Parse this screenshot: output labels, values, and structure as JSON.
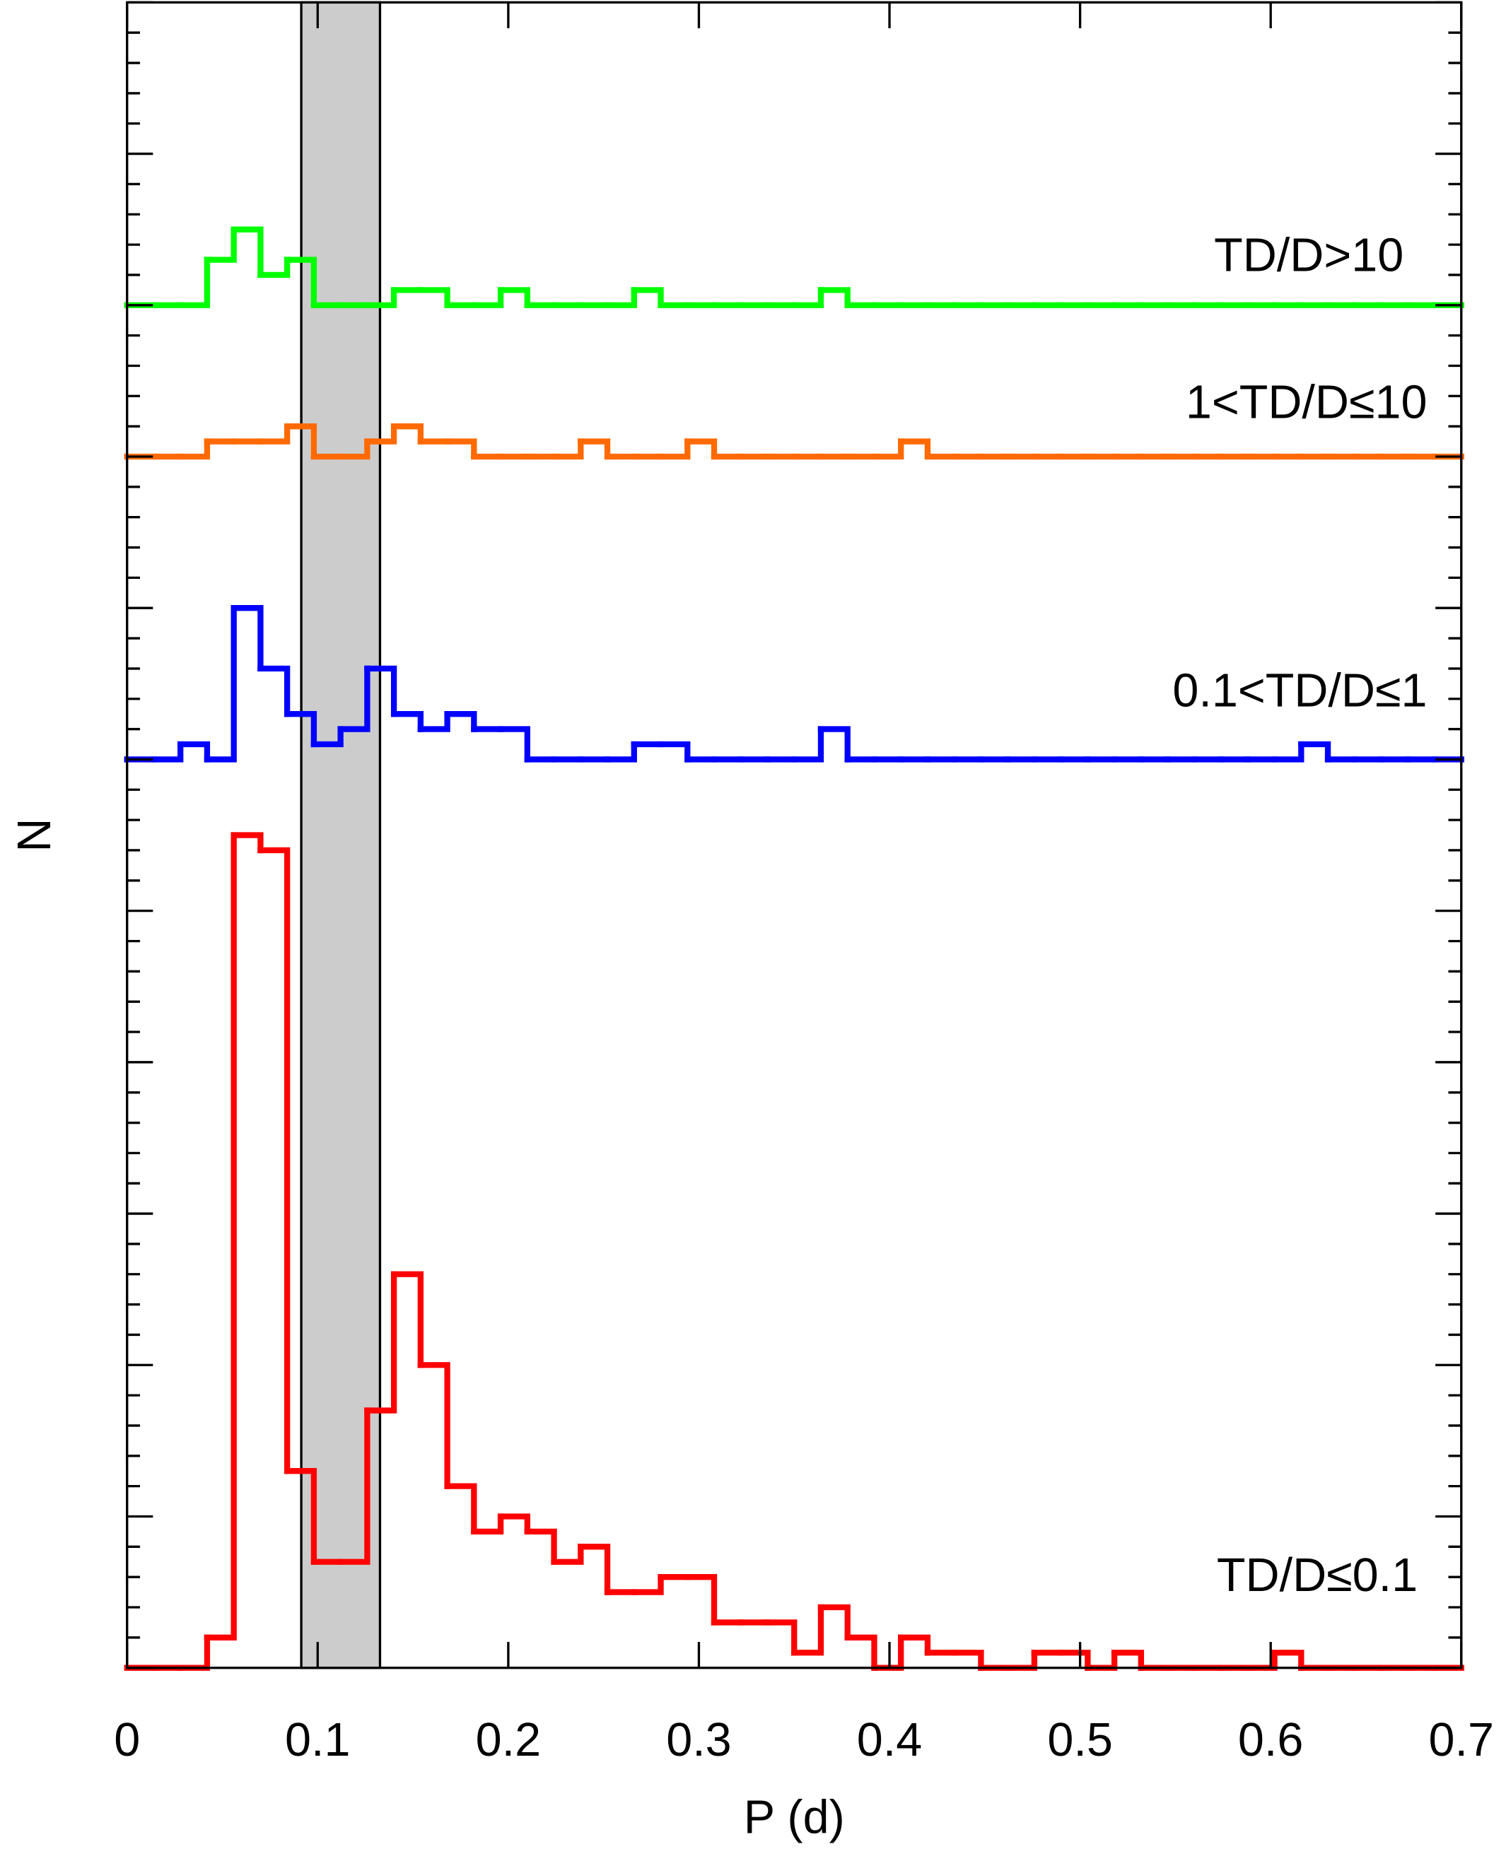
{
  "chart_data": {
    "type": "histogram",
    "xlabel": "P (d)",
    "ylabel": "N",
    "bins": [
      0,
      0.014,
      0.028,
      0.042,
      0.056,
      0.07,
      0.084,
      0.098,
      0.112,
      0.126,
      0.14,
      0.154,
      0.168,
      0.182,
      0.196,
      0.21,
      0.224,
      0.238,
      0.252,
      0.266,
      0.28,
      0.294,
      0.308,
      0.322,
      0.336,
      0.35,
      0.364,
      0.378,
      0.392,
      0.406,
      0.42,
      0.434,
      0.448,
      0.462,
      0.476,
      0.49,
      0.504,
      0.518,
      0.532,
      0.546,
      0.56,
      0.574,
      0.588,
      0.602,
      0.616,
      0.63,
      0.644,
      0.658,
      0.672,
      0.686,
      0.7
    ],
    "xlim": [
      0,
      0.7
    ],
    "xticks": [
      0,
      0.1,
      0.2,
      0.3,
      0.4,
      0.5,
      0.6,
      0.7
    ],
    "ylim": [
      0,
      110
    ],
    "yticks": [
      0,
      2,
      4,
      6,
      8,
      10,
      12,
      14,
      16,
      18,
      20,
      22,
      24,
      26,
      28,
      30,
      32,
      34,
      36,
      38,
      40,
      42,
      44,
      46,
      48,
      50,
      52,
      54,
      56,
      58,
      60,
      62,
      64,
      66,
      68,
      70,
      72,
      74,
      76,
      78,
      80,
      82,
      84,
      86,
      88,
      90,
      92,
      94,
      96,
      98,
      100,
      102,
      104,
      106,
      108,
      110
    ],
    "highlight_span": [
      0.0914,
      0.1327
    ],
    "series": [
      {
        "name": "TD/D>10",
        "color": "#00ff00",
        "offset": 90,
        "values": [
          0,
          0,
          0,
          3,
          5,
          2,
          3,
          0,
          0,
          0,
          1,
          1,
          0,
          0,
          1,
          0,
          0,
          0,
          0,
          1,
          0,
          0,
          0,
          0,
          0,
          0,
          1,
          0,
          0,
          0,
          0,
          0,
          0,
          0,
          0,
          0,
          0,
          0,
          0,
          0,
          0,
          0,
          0,
          0,
          0,
          0,
          0,
          0,
          0,
          0
        ]
      },
      {
        "name": "1<TD/D≤10",
        "color": "#ff6a00",
        "offset": 80,
        "values": [
          0,
          0,
          0,
          1,
          1,
          1,
          2,
          0,
          0,
          1,
          2,
          1,
          1,
          0,
          0,
          0,
          0,
          1,
          0,
          0,
          0,
          1,
          0,
          0,
          0,
          0,
          0,
          0,
          0,
          1,
          0,
          0,
          0,
          0,
          0,
          0,
          0,
          0,
          0,
          0,
          0,
          0,
          0,
          0,
          0,
          0,
          0,
          0,
          0,
          0
        ]
      },
      {
        "name": "0.1<TD/D≤1",
        "color": "#0000ff",
        "offset": 60,
        "values": [
          0,
          0,
          1,
          0,
          10,
          6,
          3,
          1,
          2,
          6,
          3,
          2,
          3,
          2,
          2,
          0,
          0,
          0,
          0,
          1,
          1,
          0,
          0,
          0,
          0,
          0,
          2,
          0,
          0,
          0,
          0,
          0,
          0,
          0,
          0,
          0,
          0,
          0,
          0,
          0,
          0,
          0,
          0,
          0,
          1,
          0,
          0,
          0,
          0,
          0
        ]
      },
      {
        "name": "TD/D≤0.1",
        "color": "#ff0000",
        "offset": 0,
        "values": [
          0,
          0,
          0,
          2,
          55,
          54,
          13,
          7,
          7,
          17,
          26,
          20,
          12,
          9,
          10,
          9,
          7,
          8,
          5,
          5,
          6,
          6,
          3,
          3,
          3,
          1,
          4,
          2,
          0,
          2,
          1,
          1,
          0,
          0,
          1,
          1,
          0,
          1,
          0,
          0,
          0,
          0,
          0,
          1,
          0,
          0,
          0,
          0,
          0,
          0
        ]
      }
    ]
  }
}
